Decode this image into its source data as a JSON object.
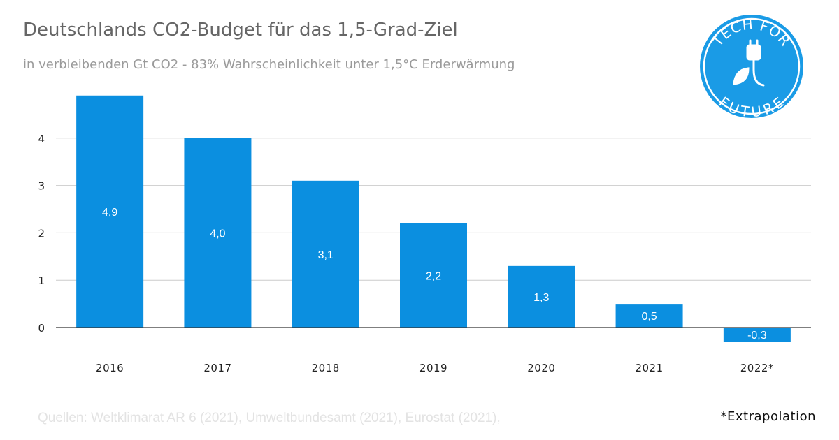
{
  "title": "Deutschlands CO2-Budget für das 1,5-Grad-Ziel",
  "subtitle": "in verbleibenden Gt CO2 - 83% Wahrscheinlichkeit unter 1,5°C Erderwärmung",
  "logo": {
    "line1": "TECH FOR",
    "line2": "FUTURE",
    "color": "#1a9be6",
    "icon": "plug-leaf-icon"
  },
  "source": "Quellen: Weltklimarat AR 6 (2021), Umweltbundesamt (2021), Eurostat (2021),",
  "footnote": "*Extrapolation",
  "chart_data": {
    "type": "bar",
    "title": "Deutschlands CO2-Budget für das 1,5-Grad-Ziel",
    "subtitle": "in verbleibenden Gt CO2 - 83% Wahrscheinlichkeit unter 1,5°C Erderwärmung",
    "categories": [
      "2016",
      "2017",
      "2018",
      "2019",
      "2020",
      "2021",
      "2022*"
    ],
    "values": [
      4.9,
      4.0,
      3.1,
      2.2,
      1.3,
      0.5,
      -0.3
    ],
    "data_labels": [
      "4,9",
      "4,0",
      "3,1",
      "2,2",
      "1,3",
      "0,5",
      "-0,3"
    ],
    "yticks": [
      0,
      1,
      2,
      3,
      4
    ],
    "ylim": [
      -0.3,
      4.9
    ],
    "grid": true,
    "bar_color": "#0b8fe0",
    "legend": "none"
  }
}
